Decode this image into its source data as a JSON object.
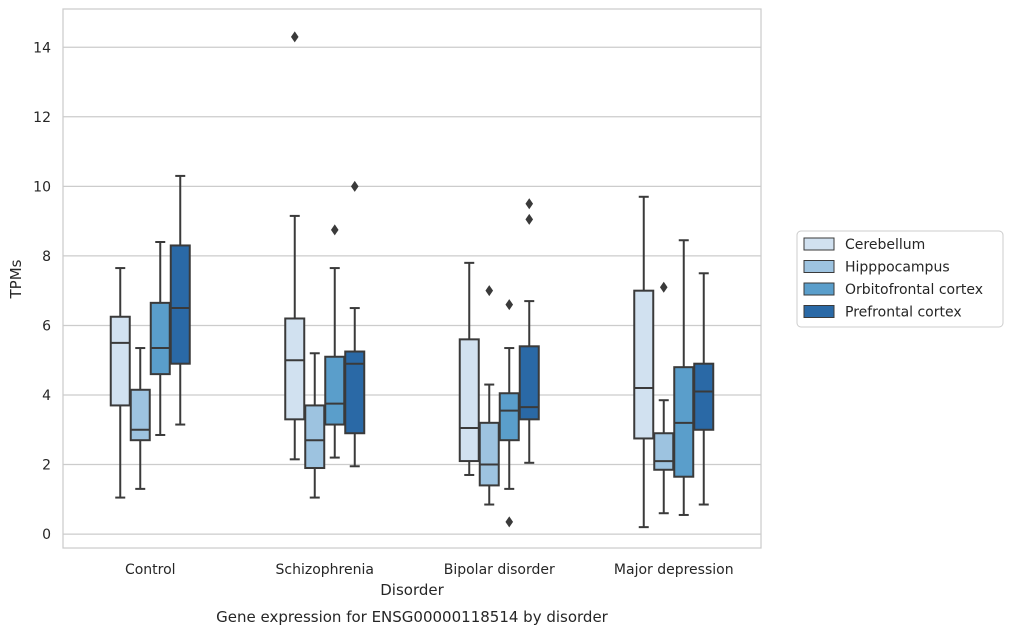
{
  "chart_data": {
    "type": "box",
    "title": "Gene expression for ENSG00000118514 by disorder",
    "xlabel": "Disorder",
    "ylabel": "TPMs",
    "ylim": [
      -0.4,
      15.1
    ],
    "yticks": [
      0,
      2,
      4,
      6,
      8,
      10,
      12,
      14
    ],
    "grid": "horizontal",
    "legend_position": "right",
    "categories": [
      "Control",
      "Schizophrenia",
      "Bipolar disorder",
      "Major depression"
    ],
    "series": [
      {
        "name": "Cerebellum",
        "color": "#d1e1f0",
        "boxes": [
          {
            "whisker_low": 1.05,
            "q1": 3.7,
            "median": 5.5,
            "q3": 6.25,
            "whisker_high": 7.65,
            "outliers": []
          },
          {
            "whisker_low": 2.15,
            "q1": 3.3,
            "median": 5.0,
            "q3": 6.2,
            "whisker_high": 9.15,
            "outliers": [
              14.3
            ]
          },
          {
            "whisker_low": 1.7,
            "q1": 2.1,
            "median": 3.05,
            "q3": 5.6,
            "whisker_high": 7.8,
            "outliers": []
          },
          {
            "whisker_low": 0.2,
            "q1": 2.75,
            "median": 4.2,
            "q3": 7.0,
            "whisker_high": 9.7,
            "outliers": []
          }
        ]
      },
      {
        "name": "Hipppocampus",
        "color": "#9dc3e0",
        "boxes": [
          {
            "whisker_low": 1.3,
            "q1": 2.7,
            "median": 3.0,
            "q3": 4.15,
            "whisker_high": 5.35,
            "outliers": []
          },
          {
            "whisker_low": 1.05,
            "q1": 1.9,
            "median": 2.7,
            "q3": 3.7,
            "whisker_high": 5.2,
            "outliers": []
          },
          {
            "whisker_low": 0.85,
            "q1": 1.4,
            "median": 2.0,
            "q3": 3.2,
            "whisker_high": 4.3,
            "outliers": [
              7.0
            ]
          },
          {
            "whisker_low": 0.6,
            "q1": 1.85,
            "median": 2.1,
            "q3": 2.9,
            "whisker_high": 3.85,
            "outliers": [
              7.1
            ]
          }
        ]
      },
      {
        "name": "Orbitofrontal cortex",
        "color": "#5a9ecb",
        "boxes": [
          {
            "whisker_low": 2.85,
            "q1": 4.6,
            "median": 5.35,
            "q3": 6.65,
            "whisker_high": 8.4,
            "outliers": []
          },
          {
            "whisker_low": 2.2,
            "q1": 3.15,
            "median": 3.75,
            "q3": 5.1,
            "whisker_high": 7.65,
            "outliers": [
              8.75
            ]
          },
          {
            "whisker_low": 1.3,
            "q1": 2.7,
            "median": 3.55,
            "q3": 4.05,
            "whisker_high": 5.35,
            "outliers": [
              6.6,
              0.35
            ]
          },
          {
            "whisker_low": 0.55,
            "q1": 1.65,
            "median": 3.2,
            "q3": 4.8,
            "whisker_high": 8.45,
            "outliers": []
          }
        ]
      },
      {
        "name": "Prefrontal cortex",
        "color": "#2a69a6",
        "boxes": [
          {
            "whisker_low": 3.15,
            "q1": 4.9,
            "median": 6.5,
            "q3": 8.3,
            "whisker_high": 10.3,
            "outliers": []
          },
          {
            "whisker_low": 1.95,
            "q1": 2.9,
            "median": 4.9,
            "q3": 5.25,
            "whisker_high": 6.5,
            "outliers": [
              10.0
            ]
          },
          {
            "whisker_low": 2.05,
            "q1": 3.3,
            "median": 3.65,
            "q3": 5.4,
            "whisker_high": 6.7,
            "outliers": [
              9.5,
              9.05
            ]
          },
          {
            "whisker_low": 0.85,
            "q1": 3.0,
            "median": 4.1,
            "q3": 4.9,
            "whisker_high": 7.5,
            "outliers": []
          }
        ]
      }
    ]
  }
}
